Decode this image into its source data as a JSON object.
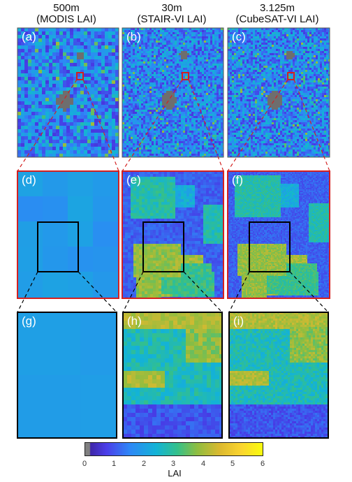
{
  "columns": [
    {
      "title_line1": "500m",
      "title_line2": "(MODIS LAI)"
    },
    {
      "title_line1": "30m",
      "title_line2": "(STAIR-VI LAI)"
    },
    {
      "title_line1": "3.125m",
      "title_line2": "(CubeSAT-VI LAI)"
    }
  ],
  "panels": [
    {
      "label": "(a)"
    },
    {
      "label": "(b)"
    },
    {
      "label": "(c)"
    },
    {
      "label": "(d)"
    },
    {
      "label": "(e)"
    },
    {
      "label": "(f)"
    },
    {
      "label": "(g)"
    },
    {
      "label": "(h)"
    },
    {
      "label": "(i)"
    }
  ],
  "colorbar": {
    "label": "LAI",
    "ticks": [
      "0",
      "1",
      "2",
      "3",
      "4",
      "5",
      "6"
    ],
    "range": [
      0,
      6
    ],
    "colors": [
      "#808080",
      "#3e26a8",
      "#2e87f7",
      "#13b3d6",
      "#34c08a",
      "#dcb92f",
      "#f9fb0e"
    ]
  },
  "accent_colors": {
    "zoom_box_red": "#d42020",
    "zoom_box_black": "#000000"
  }
}
